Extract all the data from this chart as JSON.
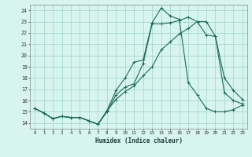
{
  "xlabel": "Humidex (Indice chaleur)",
  "ylabel": "",
  "background_color": "#d7f4ef",
  "grid_color": "#a8d8d0",
  "line_color": "#1a6b5a",
  "xlim": [
    -0.5,
    23.5
  ],
  "ylim": [
    13.5,
    24.5
  ],
  "xticks": [
    0,
    1,
    2,
    3,
    4,
    5,
    6,
    7,
    8,
    9,
    10,
    11,
    12,
    13,
    14,
    15,
    16,
    17,
    18,
    19,
    20,
    21,
    22,
    23
  ],
  "yticks": [
    14,
    15,
    16,
    17,
    18,
    19,
    20,
    21,
    22,
    23,
    24
  ],
  "series": [
    {
      "x": [
        0,
        1,
        2,
        3,
        4,
        5,
        6,
        7,
        8,
        9,
        10,
        11,
        12,
        13,
        14,
        15,
        16,
        17,
        18,
        19,
        20,
        21,
        22,
        23
      ],
      "y": [
        15.3,
        14.9,
        14.4,
        14.6,
        14.5,
        14.5,
        14.2,
        13.9,
        15.0,
        16.5,
        17.2,
        17.5,
        19.3,
        22.8,
        22.8,
        22.9,
        23.1,
        23.4,
        23.0,
        23.0,
        21.7,
        18.0,
        16.9,
        16.1
      ]
    },
    {
      "x": [
        0,
        1,
        2,
        3,
        4,
        5,
        6,
        7,
        8,
        9,
        10,
        11,
        12,
        13,
        14,
        15,
        16,
        17,
        18,
        19,
        20,
        21,
        22,
        23
      ],
      "y": [
        15.3,
        14.9,
        14.4,
        14.6,
        14.5,
        14.5,
        14.2,
        13.9,
        15.1,
        16.9,
        18.0,
        19.4,
        19.6,
        22.9,
        24.2,
        23.5,
        23.2,
        17.6,
        16.5,
        15.3,
        15.0,
        15.0,
        15.2,
        15.6
      ]
    },
    {
      "x": [
        0,
        1,
        2,
        3,
        4,
        5,
        6,
        7,
        8,
        9,
        10,
        11,
        12,
        13,
        14,
        15,
        16,
        17,
        18,
        19,
        20,
        21,
        22,
        23
      ],
      "y": [
        15.3,
        14.9,
        14.4,
        14.6,
        14.5,
        14.5,
        14.2,
        13.9,
        15.1,
        16.1,
        16.8,
        17.3,
        18.2,
        19.0,
        20.5,
        21.2,
        21.9,
        22.4,
        23.0,
        21.8,
        21.7,
        16.7,
        16.0,
        15.7
      ]
    }
  ]
}
